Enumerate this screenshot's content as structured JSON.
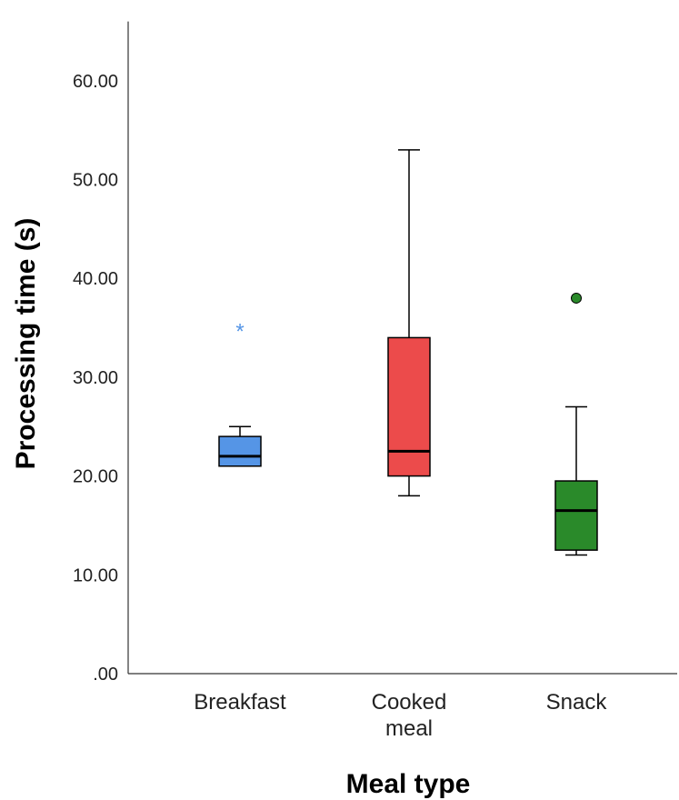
{
  "chart_data": {
    "type": "boxplot",
    "xlabel": "Meal type",
    "ylabel": "Processing time (s)",
    "ylim": [
      0,
      66
    ],
    "yticks": [
      ".00",
      "10.00",
      "20.00",
      "30.00",
      "40.00",
      "50.00",
      "60.00"
    ],
    "grid": false,
    "categories": [
      {
        "name": "Breakfast",
        "label_lines": [
          "Breakfast"
        ],
        "color": "#5595e6",
        "whisker_low": 21,
        "q1": 21,
        "median": 22,
        "q3": 24,
        "whisker_high": 25,
        "outliers": [],
        "extremes": [
          35
        ]
      },
      {
        "name": "Cooked meal",
        "label_lines": [
          "Cooked",
          "meal"
        ],
        "color": "#ec4b4b",
        "whisker_low": 18,
        "q1": 20,
        "median": 22.5,
        "q3": 34,
        "whisker_high": 53,
        "outliers": [],
        "extremes": []
      },
      {
        "name": "Snack",
        "label_lines": [
          "Snack"
        ],
        "color": "#2a8a2a",
        "whisker_low": 12,
        "q1": 12.5,
        "median": 16.5,
        "q3": 19.5,
        "whisker_high": 27,
        "outliers": [
          38
        ],
        "extremes": []
      }
    ]
  }
}
